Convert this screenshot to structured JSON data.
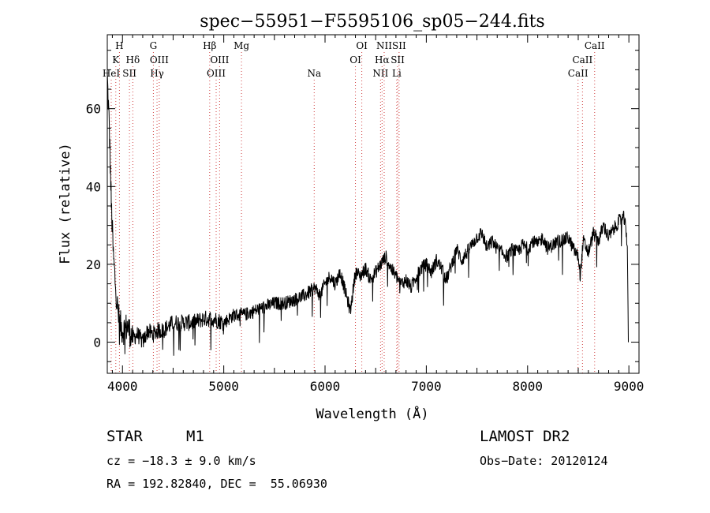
{
  "chart_data": {
    "type": "line",
    "title": "spec−55951−F5595106_sp05−244.fits",
    "xlabel": "Wavelength (Å)",
    "ylabel": "Flux (relative)",
    "xlim": [
      3850,
      9100
    ],
    "ylim": [
      -8,
      79
    ],
    "xticks": [
      4000,
      5000,
      6000,
      7000,
      8000,
      9000
    ],
    "yticks": [
      0,
      20,
      40,
      60
    ],
    "grid": false,
    "series": [
      {
        "x": [
          3850,
          3870,
          3890,
          3910,
          3930,
          3950,
          3970,
          4000,
          4050,
          4100,
          4150,
          4200,
          4250,
          4300,
          4350,
          4400,
          4450,
          4500,
          4600,
          4700,
          4800,
          4900,
          5000,
          5100,
          5200,
          5300,
          5400,
          5500,
          5600,
          5700,
          5800,
          5850,
          5900,
          5950,
          6000,
          6050,
          6100,
          6150,
          6200,
          6250,
          6300,
          6350,
          6400,
          6450,
          6500,
          6550,
          6600,
          6650,
          6700,
          6750,
          6800,
          6850,
          6900,
          6950,
          7000,
          7050,
          7100,
          7150,
          7200,
          7250,
          7300,
          7350,
          7400,
          7450,
          7500,
          7550,
          7600,
          7650,
          7700,
          7750,
          7800,
          7850,
          7900,
          7950,
          8000,
          8050,
          8100,
          8150,
          8200,
          8250,
          8300,
          8350,
          8400,
          8450,
          8500,
          8520,
          8550,
          8600,
          8650,
          8700,
          8750,
          8800,
          8850,
          8900,
          8950,
          8970,
          8985,
          8995
        ],
        "y": [
          68,
          55,
          35,
          22,
          15,
          9,
          5,
          3,
          4,
          1,
          2,
          0,
          3,
          2,
          3,
          3,
          4,
          5,
          5,
          5,
          6,
          6,
          5,
          7,
          7,
          8,
          9,
          10,
          10,
          11,
          12,
          13,
          14,
          12,
          15,
          17,
          15,
          18,
          13,
          8,
          18,
          17,
          19,
          16,
          18,
          20,
          22,
          19,
          17,
          15,
          16,
          14,
          17,
          19,
          20,
          18,
          21,
          19,
          16,
          20,
          24,
          21,
          23,
          25,
          27,
          28,
          24,
          26,
          24,
          23,
          22,
          24,
          23,
          25,
          24,
          26,
          25,
          27,
          24,
          25,
          26,
          26,
          27,
          24,
          22,
          17,
          26,
          23,
          28,
          26,
          30,
          27,
          29,
          31,
          32,
          29,
          25,
          0
        ]
      }
    ],
    "lines": [
      {
        "label": "H",
        "x": 3970,
        "row": 0
      },
      {
        "label": "K",
        "x": 3934,
        "row": 1
      },
      {
        "label": "HeI",
        "x": 3889,
        "row": 2
      },
      {
        "label": "Hδ",
        "x": 4102,
        "row": 1
      },
      {
        "label": "SII",
        "x": 4069,
        "row": 2
      },
      {
        "label": "G",
        "x": 4305,
        "row": 0
      },
      {
        "label": "OIII",
        "x": 4363,
        "row": 1
      },
      {
        "label": "Hγ",
        "x": 4341,
        "row": 2
      },
      {
        "label": "Hβ",
        "x": 4861,
        "row": 0
      },
      {
        "label": "OIII",
        "x": 4959,
        "row": 1
      },
      {
        "label": "OIII",
        "x": 4925,
        "row": 2
      },
      {
        "label": "Mg",
        "x": 5175,
        "row": 0
      },
      {
        "label": "Na",
        "x": 5893,
        "row": 2
      },
      {
        "label": "OI",
        "x": 6363,
        "row": 0
      },
      {
        "label": "OI",
        "x": 6300,
        "row": 1
      },
      {
        "label": "NII",
        "x": 6584,
        "row": 0
      },
      {
        "label": "Hα",
        "x": 6563,
        "row": 1
      },
      {
        "label": "NII",
        "x": 6548,
        "row": 2
      },
      {
        "label": "SII",
        "x": 6731,
        "row": 0
      },
      {
        "label": "SII",
        "x": 6717,
        "row": 1
      },
      {
        "label": "Li",
        "x": 6708,
        "row": 2
      },
      {
        "label": "CaII",
        "x": 8662,
        "row": 0
      },
      {
        "label": "CaII",
        "x": 8542,
        "row": 1
      },
      {
        "label": "CaII",
        "x": 8498,
        "row": 2
      }
    ]
  },
  "info": {
    "object_class": "STAR",
    "subclass": "M1",
    "survey": "LAMOST DR2",
    "redshift": "cz = −18.3 ± 9.0 km/s",
    "obs_date": "Obs−Date: 20120124",
    "coords": "RA = 192.82840, DEC =  55.06930"
  }
}
